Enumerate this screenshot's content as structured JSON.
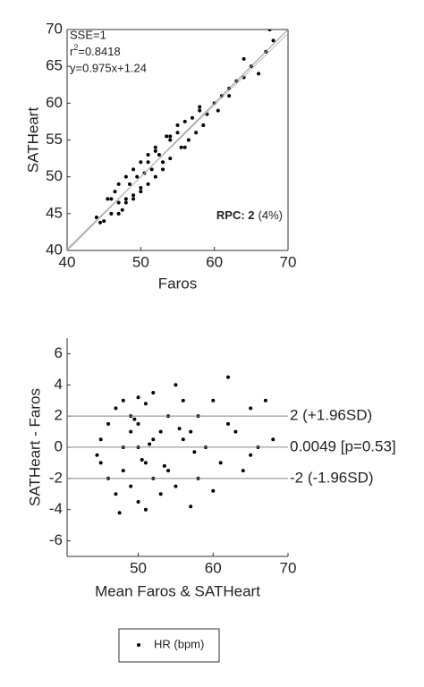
{
  "chart_data": [
    {
      "type": "scatter",
      "xlabel": "Faros",
      "ylabel": "SATHeart",
      "xlim": [
        40,
        70
      ],
      "ylim": [
        40,
        70
      ],
      "xticks": [
        40,
        50,
        60,
        70
      ],
      "yticks": [
        40,
        45,
        50,
        55,
        60,
        65,
        70
      ],
      "box": true,
      "annotations": {
        "sse": "SSE=1",
        "r2": [
          "r",
          "2",
          "=0.8418"
        ],
        "equation": "y=0.975x+1.24",
        "rpc_label": "RPC: 2",
        "rpc_pct": "(4%)"
      },
      "identity_line": true,
      "fit": {
        "slope": 0.975,
        "intercept": 1.24
      },
      "series": [
        {
          "color": "#000000",
          "x": [
            44,
            45,
            45.5,
            46,
            46.5,
            47,
            47,
            47.5,
            48,
            48,
            48.5,
            49,
            49,
            49.5,
            50,
            50,
            50.5,
            51,
            51,
            51.5,
            52,
            52,
            52.5,
            53,
            53.5,
            54,
            54,
            55,
            55.5,
            56,
            56.5,
            57,
            57.5,
            58,
            58.5,
            59,
            60,
            60.5,
            61,
            62,
            63,
            64,
            65,
            66,
            67,
            46,
            48,
            50,
            52,
            54,
            56,
            58,
            44.5,
            47,
            49,
            51,
            53,
            55,
            62,
            64,
            67.5,
            68
          ],
          "values": [
            44.5,
            44,
            47,
            45,
            48,
            46.5,
            49,
            45.5,
            50,
            47,
            49,
            51,
            47.5,
            50,
            52,
            48,
            50.5,
            53,
            49,
            51,
            54,
            50,
            53,
            52,
            55.5,
            55,
            52.5,
            56,
            54,
            57.5,
            55,
            58,
            56,
            59,
            57,
            58.5,
            60,
            59,
            61,
            62,
            63,
            63.5,
            65,
            64,
            67,
            47,
            46.5,
            48.5,
            53.5,
            55.5,
            54,
            59.5,
            43.8,
            45,
            47,
            52,
            51,
            57,
            61,
            66,
            70,
            68.5
          ]
        }
      ]
    },
    {
      "type": "scatter",
      "xlabel": "Mean Faros & SATHeart",
      "ylabel": "SATHeart - Faros",
      "xlim": [
        40.5,
        70
      ],
      "ylim": [
        -7,
        7
      ],
      "xticks": [
        50,
        60,
        70
      ],
      "yticks": [
        -6,
        -4,
        -2,
        0,
        2,
        4,
        6
      ],
      "box": false,
      "ref_lines": [
        {
          "value": 2,
          "label": "2 (+1.96SD)"
        },
        {
          "value": 0.0049,
          "label": "0.0049 [p=0.53]"
        },
        {
          "value": -2,
          "label": "-2 (-1.96SD)"
        }
      ],
      "legend": "bottom-outside",
      "series": [
        {
          "name": "HR (bpm)",
          "color": "#000000",
          "x": [
            45,
            45,
            46,
            46,
            47,
            47,
            48,
            48,
            48,
            49,
            49,
            49,
            50,
            50,
            50,
            50,
            51,
            51,
            51,
            52,
            52,
            52,
            53,
            53,
            54,
            54,
            55,
            55,
            56,
            56,
            57,
            57,
            58,
            58,
            59,
            60,
            61,
            62,
            63,
            64,
            65,
            66,
            67,
            68,
            44.5,
            47.5,
            49.5,
            50.5,
            51.5,
            53.5,
            55.5,
            57.5,
            60,
            62,
            65
          ],
          "values": [
            0.5,
            -1,
            1.5,
            -2,
            2.5,
            -3,
            0,
            3,
            -1.5,
            1,
            -2.5,
            2,
            0,
            3.2,
            -3.5,
            1.5,
            -1,
            2.8,
            -4,
            0.5,
            3.5,
            -2,
            1,
            -3,
            2,
            -1.5,
            4,
            -2.5,
            0.5,
            3,
            -3.8,
            1,
            2,
            -2,
            0,
            3,
            -1,
            4.5,
            1,
            -1.5,
            2.5,
            0,
            3,
            0.5,
            -0.5,
            -4.2,
            1.8,
            -0.8,
            0.2,
            -1.2,
            1.2,
            -0.3,
            -2.8,
            1.5,
            -0.5
          ]
        }
      ]
    }
  ]
}
